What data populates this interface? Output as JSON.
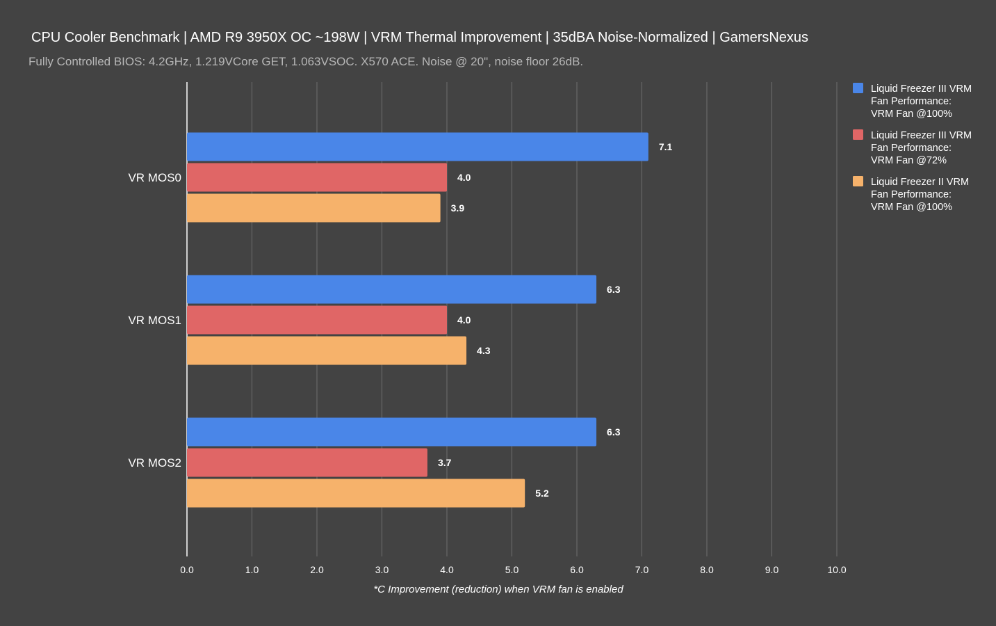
{
  "chart_data": {
    "type": "bar",
    "orientation": "horizontal",
    "title": "CPU Cooler Benchmark | AMD R9 3950X OC ~198W | VRM Thermal Improvement | 35dBA Noise-Normalized | GamersNexus",
    "subtitle": "Fully Controlled BIOS: 4.2GHz, 1.219VCore GET, 1.063VSOC. X570 ACE. Noise @ 20\", noise floor 26dB.",
    "xlabel": "*C Improvement (reduction) when VRM fan is enabled",
    "ylabel": "",
    "xlim": [
      0,
      10
    ],
    "xticks": [
      "0.0",
      "1.0",
      "2.0",
      "3.0",
      "4.0",
      "5.0",
      "6.0",
      "7.0",
      "8.0",
      "9.0",
      "10.0"
    ],
    "grid": true,
    "legend_position": "right",
    "categories": [
      "VR MOS0",
      "VR MOS1",
      "VR MOS2"
    ],
    "series": [
      {
        "name": [
          "Liquid Freezer III VRM",
          "Fan Performance:",
          "VRM Fan @100%"
        ],
        "color": "#4a86e8",
        "values": [
          7.1,
          6.3,
          6.3
        ],
        "labels": [
          "7.1",
          "6.3",
          "6.3"
        ]
      },
      {
        "name": [
          "Liquid Freezer III VRM",
          "Fan Performance:",
          "VRM Fan @72%"
        ],
        "color": "#e06666",
        "values": [
          4.0,
          4.0,
          3.7
        ],
        "labels": [
          "4.0",
          "4.0",
          "3.7"
        ]
      },
      {
        "name": [
          "Liquid Freezer II VRM",
          "Fan Performance:",
          "VRM Fan @100%"
        ],
        "color": "#f6b26b",
        "values": [
          3.9,
          4.3,
          5.2
        ],
        "labels": [
          "3.9",
          "4.3",
          "5.2"
        ]
      }
    ]
  }
}
